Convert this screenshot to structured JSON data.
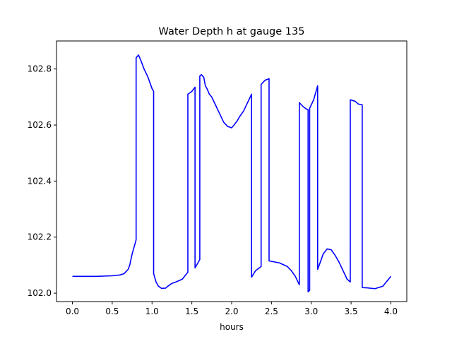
{
  "chart_data": {
    "type": "line",
    "title": "Water Depth h at gauge 135",
    "xlabel": "hours",
    "ylabel": "",
    "xlim": [
      -0.2,
      4.2
    ],
    "ylim": [
      101.97,
      102.9
    ],
    "xticks": [
      0.0,
      0.5,
      1.0,
      1.5,
      2.0,
      2.5,
      3.0,
      3.5,
      4.0
    ],
    "xtick_labels": [
      "0.0",
      "0.5",
      "1.0",
      "1.5",
      "2.0",
      "2.5",
      "3.0",
      "3.5",
      "4.0"
    ],
    "yticks": [
      102.0,
      102.2,
      102.4,
      102.6,
      102.8
    ],
    "ytick_labels": [
      "102.0",
      "102.2",
      "102.4",
      "102.6",
      "102.8"
    ],
    "grid": false,
    "series": [
      {
        "color": "#0000ff",
        "x": [
          0.0,
          0.3,
          0.5,
          0.6,
          0.65,
          0.7,
          0.72,
          0.75,
          0.78,
          0.8,
          0.8,
          0.83,
          0.86,
          0.9,
          0.95,
          1.0,
          1.02,
          1.02,
          1.05,
          1.08,
          1.12,
          1.17,
          1.2,
          1.25,
          1.3,
          1.38,
          1.45,
          1.45,
          1.5,
          1.54,
          1.54,
          1.6,
          1.6,
          1.62,
          1.65,
          1.67,
          1.69,
          1.72,
          1.75,
          1.8,
          1.85,
          1.9,
          1.95,
          2.0,
          2.03,
          2.07,
          2.1,
          2.15,
          2.2,
          2.25,
          2.25,
          2.3,
          2.37,
          2.37,
          2.42,
          2.47,
          2.47,
          2.6,
          2.7,
          2.75,
          2.8,
          2.85,
          2.85,
          2.9,
          2.95,
          2.96,
          2.96,
          2.98,
          2.98,
          3.03,
          3.08,
          3.08,
          3.1,
          3.15,
          3.2,
          3.25,
          3.3,
          3.35,
          3.4,
          3.45,
          3.49,
          3.49,
          3.55,
          3.59,
          3.64,
          3.64,
          3.7,
          3.8,
          3.9,
          4.0
        ],
        "y": [
          102.06,
          102.06,
          102.062,
          102.065,
          102.07,
          102.085,
          102.1,
          102.14,
          102.17,
          102.19,
          102.84,
          102.85,
          102.83,
          102.8,
          102.77,
          102.73,
          102.72,
          102.07,
          102.04,
          102.025,
          102.017,
          102.018,
          102.025,
          102.035,
          102.04,
          102.05,
          102.075,
          102.71,
          102.72,
          102.735,
          102.09,
          102.12,
          102.775,
          102.78,
          102.77,
          102.74,
          102.73,
          102.71,
          102.7,
          102.67,
          102.64,
          102.61,
          102.595,
          102.59,
          102.6,
          102.615,
          102.63,
          102.65,
          102.68,
          102.71,
          102.057,
          102.08,
          102.095,
          102.745,
          102.76,
          102.765,
          102.115,
          102.108,
          102.095,
          102.08,
          102.06,
          102.03,
          102.68,
          102.665,
          102.655,
          102.655,
          102.005,
          102.01,
          102.66,
          102.69,
          102.74,
          102.085,
          102.1,
          102.14,
          102.158,
          102.155,
          102.135,
          102.11,
          102.08,
          102.05,
          102.04,
          102.69,
          102.685,
          102.675,
          102.672,
          102.02,
          102.019,
          102.016,
          102.025,
          102.06
        ]
      }
    ]
  }
}
